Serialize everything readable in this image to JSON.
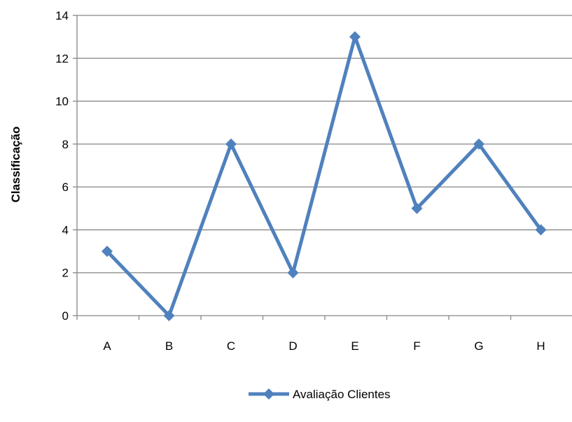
{
  "chart_data": {
    "type": "line",
    "title": "",
    "xlabel": "",
    "ylabel": "Classificação",
    "categories": [
      "A",
      "B",
      "C",
      "D",
      "E",
      "F",
      "G",
      "H"
    ],
    "series": [
      {
        "name": "Avaliação Clientes",
        "values": [
          3,
          0,
          8,
          2,
          13,
          5,
          8,
          4
        ],
        "color": "#4F81BD"
      }
    ],
    "ylim": [
      0,
      14
    ],
    "yticks": [
      0,
      2,
      4,
      6,
      8,
      10,
      12,
      14
    ],
    "grid": "horizontal",
    "gridColor": "#868686",
    "legend": "bottom",
    "marker": "diamond"
  }
}
